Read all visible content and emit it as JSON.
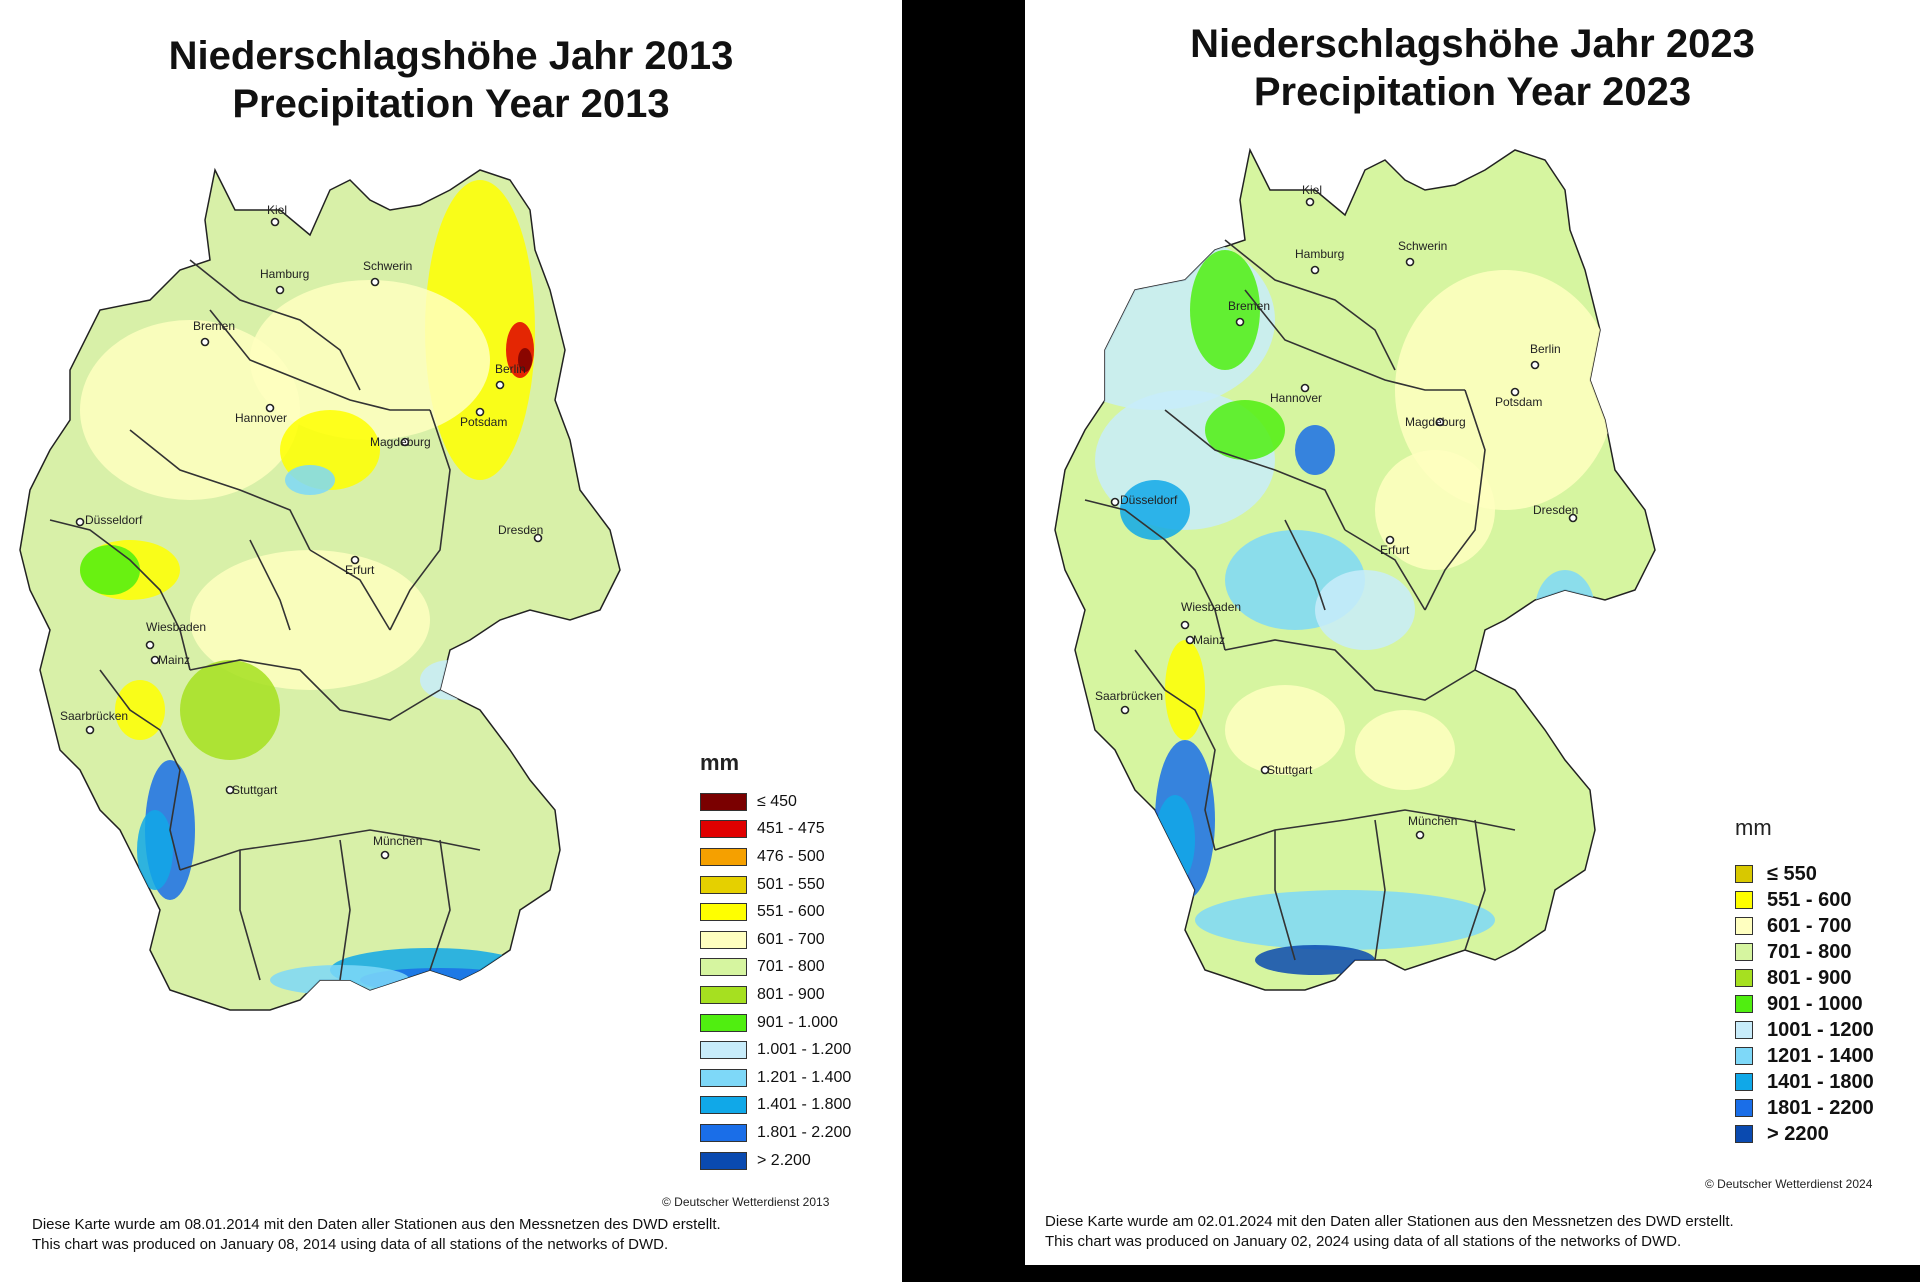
{
  "maps": [
    {
      "title_de": "Niederschlagshöhe Jahr 2013",
      "title_en": "Precipitation Year 2013",
      "legend_unit": "mm",
      "legend": [
        {
          "label": "≤ 450",
          "color": "#7a0000"
        },
        {
          "label": "451 - 475",
          "color": "#e00000"
        },
        {
          "label": "476 - 500",
          "color": "#f5a000"
        },
        {
          "label": "501 - 550",
          "color": "#e5d000"
        },
        {
          "label": "551 - 600",
          "color": "#ffff00"
        },
        {
          "label": "601 - 700",
          "color": "#ffffc0"
        },
        {
          "label": "701 - 800",
          "color": "#d6f5a0"
        },
        {
          "label": "801 - 900",
          "color": "#a6e020"
        },
        {
          "label": "901 - 1.000",
          "color": "#50ee10"
        },
        {
          "label": "1.001 - 1.200",
          "color": "#c8ecfa"
        },
        {
          "label": "1.201 - 1.400",
          "color": "#7ed8f8"
        },
        {
          "label": "1.401 - 1.800",
          "color": "#10a8e8"
        },
        {
          "label": "1.801 - 2.200",
          "color": "#1a6ee8"
        },
        {
          "label": "> 2.200",
          "color": "#0a4ab0"
        }
      ],
      "cities": [
        "Kiel",
        "Hamburg",
        "Schwerin",
        "Bremen",
        "Berlin",
        "Hannover",
        "Potsdam",
        "Magdeburg",
        "Düsseldorf",
        "Dresden",
        "Erfurt",
        "Wiesbaden",
        "Mainz",
        "Saarbrücken",
        "Stuttgart",
        "München"
      ],
      "copyright": "© Deutscher Wetterdienst 2013",
      "note_de": "Diese Karte wurde am 08.01.2014 mit den Daten aller Stationen aus den Messnetzen des DWD erstellt.",
      "note_en": "This chart was produced on January 08, 2014 using data of all stations of the networks of DWD."
    },
    {
      "title_de": "Niederschlagshöhe Jahr 2023",
      "title_en": "Precipitation Year 2023",
      "legend_unit": "mm",
      "legend": [
        {
          "label": "≤  550",
          "color": "#d8c800"
        },
        {
          "label": "551 - 600",
          "color": "#ffff00"
        },
        {
          "label": "601 - 700",
          "color": "#ffffc0"
        },
        {
          "label": "701 - 800",
          "color": "#d6f5a0"
        },
        {
          "label": "801 - 900",
          "color": "#a6e020"
        },
        {
          "label": "901 - 1000",
          "color": "#50ee10"
        },
        {
          "label": "1001 - 1200",
          "color": "#c8ecfa"
        },
        {
          "label": "1201 - 1400",
          "color": "#7ed8f8"
        },
        {
          "label": "1401 - 1800",
          "color": "#10a8e8"
        },
        {
          "label": "1801 - 2200",
          "color": "#1a6ee8"
        },
        {
          "label": "> 2200",
          "color": "#0a4ab0"
        }
      ],
      "cities": [
        "Kiel",
        "Hamburg",
        "Schwerin",
        "Bremen",
        "Berlin",
        "Hannover",
        "Potsdam",
        "Magdeburg",
        "Düsseldorf",
        "Dresden",
        "Erfurt",
        "Wiesbaden",
        "Mainz",
        "Saarbrücken",
        "Stuttgart",
        "München"
      ],
      "copyright": "© Deutscher Wetterdienst 2024",
      "note_de": "Diese Karte wurde am 02.01.2024 mit den Daten aller Stationen aus den Messnetzen des DWD erstellt.",
      "note_en": "This chart was produced on January 02, 2024 using data of all stations of the networks of DWD."
    }
  ]
}
